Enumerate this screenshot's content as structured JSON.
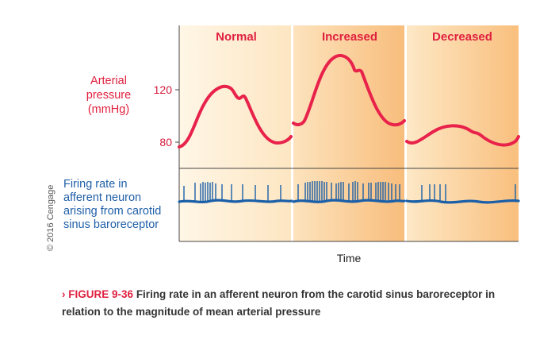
{
  "panels": [
    {
      "title": "Normal"
    },
    {
      "title": "Increased"
    },
    {
      "title": "Decreased"
    }
  ],
  "pressure_label": [
    "Arterial",
    "pressure",
    "(mmHg)"
  ],
  "ticks": {
    "high": "120",
    "low": "80"
  },
  "firing_label": [
    "Firing rate in",
    "afferent neuron",
    "arising from carotid",
    "sinus baroreceptor"
  ],
  "x_axis_label": "Time",
  "copyright": "© 2016 Cengage",
  "caption": {
    "marker": "›",
    "figure_number": "FIGURE 9-36",
    "text": "Firing rate in an afferent neuron from the carotid sinus baroreceptor in relation to the magnitude of mean arterial pressure"
  },
  "colors": {
    "pressure_curve": "#e8224a",
    "firing_trace": "#1a5fa8",
    "panel_title": "#e0203f",
    "bg_light": "#fdeac8",
    "bg_dark": "#f9c27e"
  }
}
